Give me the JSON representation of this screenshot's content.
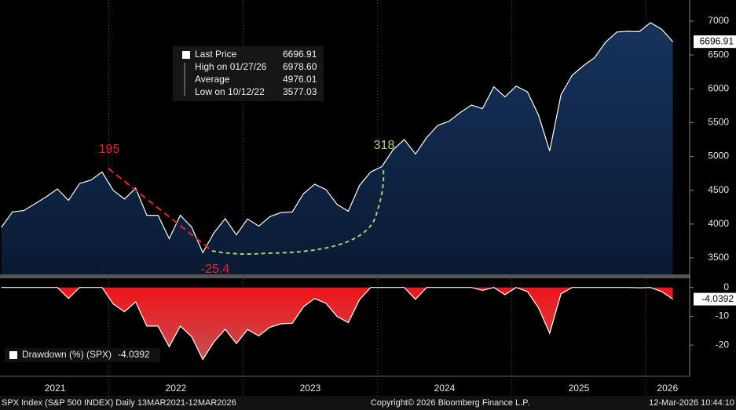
{
  "chart_data": [
    {
      "type": "area",
      "series_name": "Last Price",
      "color": "#0d2444",
      "line_color": "#ffffff",
      "x": [
        2021.2,
        2021.283,
        2021.367,
        2021.45,
        2021.533,
        2021.617,
        2021.7,
        2021.783,
        2021.867,
        2021.95,
        2022.033,
        2022.117,
        2022.2,
        2022.283,
        2022.367,
        2022.45,
        2022.533,
        2022.617,
        2022.7,
        2022.783,
        2022.867,
        2022.95,
        2023.033,
        2023.117,
        2023.2,
        2023.283,
        2023.367,
        2023.45,
        2023.533,
        2023.617,
        2023.7,
        2023.783,
        2023.867,
        2023.95,
        2024.033,
        2024.117,
        2024.2,
        2024.283,
        2024.367,
        2024.45,
        2024.533,
        2024.617,
        2024.7,
        2024.783,
        2024.867,
        2024.95,
        2025.033,
        2025.117,
        2025.2,
        2025.283,
        2025.367,
        2025.45,
        2025.533,
        2025.617,
        2025.7,
        2025.783,
        2025.867,
        2025.95,
        2026.033,
        2026.117,
        2026.2
      ],
      "values": [
        3950,
        4180,
        4200,
        4300,
        4400,
        4520,
        4350,
        4600,
        4650,
        4770,
        4500,
        4370,
        4530,
        4130,
        4130,
        3785,
        4130,
        3955,
        3577,
        3870,
        4080,
        3840,
        4075,
        3970,
        4110,
        4170,
        4180,
        4450,
        4590,
        4510,
        4290,
        4190,
        4570,
        4770,
        4850,
        5100,
        5250,
        5035,
        5280,
        5460,
        5520,
        5650,
        5760,
        5705,
        6030,
        5880,
        6040,
        5955,
        5610,
        5080,
        5910,
        6200,
        6340,
        6460,
        6690,
        6840,
        6850,
        6845,
        6978.6,
        6880,
        6696.91
      ],
      "value_label": "6696.91",
      "xlim": [
        2021.19,
        2026.325
      ],
      "xticks": [
        {
          "value": 2021.6,
          "label": "2021"
        },
        {
          "value": 2022.5,
          "label": "2022"
        },
        {
          "value": 2023.5,
          "label": "2023"
        },
        {
          "value": 2024.5,
          "label": "2024"
        },
        {
          "value": 2025.5,
          "label": "2025"
        },
        {
          "value": 2026.16,
          "label": "2026"
        }
      ],
      "x_separators": [
        2022,
        2023,
        2024,
        2025,
        2026
      ],
      "ylim": [
        3256,
        7313
      ],
      "yticks": [
        3500,
        4000,
        4500,
        5000,
        5500,
        6000,
        6500,
        7000
      ],
      "annotations": [
        {
          "text": "195",
          "color": "#e8262b"
        },
        {
          "text": "-25.4",
          "color": "#e8262b"
        },
        {
          "text": "318",
          "color": "#9fd67a"
        }
      ],
      "info_box": {
        "rows": [
          [
            "Last Price",
            "6696.91"
          ],
          [
            "High on 01/27/26",
            "6978.60"
          ],
          [
            "Average",
            "4976.01"
          ],
          [
            "Low on 10/12/22",
            "3577.03"
          ]
        ]
      }
    },
    {
      "type": "area",
      "series_name": "Drawdown (%) (SPX)",
      "color": "#e3161c",
      "line_color": "#ffffff",
      "x": [
        2021.2,
        2021.283,
        2021.367,
        2021.45,
        2021.533,
        2021.617,
        2021.7,
        2021.783,
        2021.867,
        2021.95,
        2022.033,
        2022.117,
        2022.2,
        2022.283,
        2022.367,
        2022.45,
        2022.533,
        2022.617,
        2022.7,
        2022.783,
        2022.867,
        2022.95,
        2023.033,
        2023.117,
        2023.2,
        2023.283,
        2023.367,
        2023.45,
        2023.533,
        2023.617,
        2023.7,
        2023.783,
        2023.867,
        2023.95,
        2024.033,
        2024.117,
        2024.2,
        2024.283,
        2024.367,
        2024.45,
        2024.533,
        2024.617,
        2024.7,
        2024.783,
        2024.867,
        2024.95,
        2025.033,
        2025.117,
        2025.2,
        2025.283,
        2025.367,
        2025.45,
        2025.533,
        2025.617,
        2025.7,
        2025.783,
        2025.867,
        2025.95,
        2026.033,
        2026.117,
        2026.2
      ],
      "values": [
        0,
        0,
        0,
        0,
        0,
        0,
        -3.8,
        0,
        0,
        0,
        -5.7,
        -8.4,
        -5.0,
        -13.4,
        -13.4,
        -20.6,
        -13.4,
        -17.1,
        -25.0,
        -18.9,
        -14.5,
        -19.5,
        -14.6,
        -16.8,
        -13.8,
        -12.6,
        -12.4,
        -6.7,
        -3.8,
        -5.5,
        -10.1,
        -12.2,
        -4.2,
        0,
        0,
        0,
        0,
        -4.1,
        0,
        0,
        0,
        0,
        0,
        -1.0,
        0,
        -2.5,
        0,
        -1.4,
        -7.1,
        -15.9,
        -2.2,
        0,
        0,
        0,
        0,
        0,
        0,
        -0.1,
        0,
        -1.4,
        -4.0392
      ],
      "value_label": "-4.0392",
      "ylim": [
        -30.3,
        3.2
      ],
      "yticks": [
        0,
        -10,
        -20
      ]
    }
  ],
  "footer": {
    "left": "SPX Index (S&P 500 INDEX) Daily 13MAR2021-12MAR2026",
    "center": "Copyright© 2026 Bloomberg Finance L.P.",
    "right": "12-Mar-2026 10:44:10"
  }
}
